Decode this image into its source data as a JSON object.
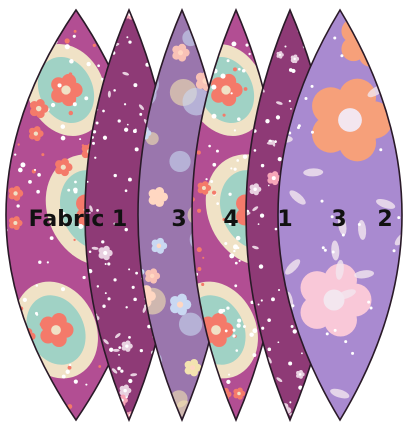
{
  "panels": [
    {
      "label": "Fabric 1",
      "fabric": "1",
      "style": "paisley",
      "base": "#b24e93",
      "accents": [
        "#f0e2c6",
        "#f47a6a",
        "#5fc4c4",
        "#ffffff"
      ]
    },
    {
      "label": "3",
      "fabric": "3",
      "style": "ditsy",
      "base": "#8e3a76",
      "accents": [
        "#ffffff",
        "#f6a6b8",
        "#e8d0e0"
      ]
    },
    {
      "label": "4",
      "fabric": "4",
      "style": "dots-floral",
      "base": "#9a76ad",
      "accents": [
        "#f8c1b6",
        "#ffd7c2",
        "#c9d8f2",
        "#f3e3b0"
      ]
    },
    {
      "label": "1",
      "fabric": "1",
      "style": "paisley",
      "base": "#b24e93",
      "accents": [
        "#f0e2c6",
        "#f47a6a",
        "#5fc4c4",
        "#ffffff"
      ]
    },
    {
      "label": "3",
      "fabric": "3",
      "style": "ditsy",
      "base": "#8e3a76",
      "accents": [
        "#ffffff",
        "#f6a6b8",
        "#e8d0e0"
      ]
    },
    {
      "label": "2",
      "fabric": "2",
      "style": "big-floral",
      "base": "#a98ad0",
      "accents": [
        "#f6a07a",
        "#f9c8d8",
        "#f3e6ef",
        "#ffffff"
      ]
    }
  ],
  "colors": {
    "outline": "#2a1a28",
    "background": "#ffffff",
    "label": "#111111"
  }
}
